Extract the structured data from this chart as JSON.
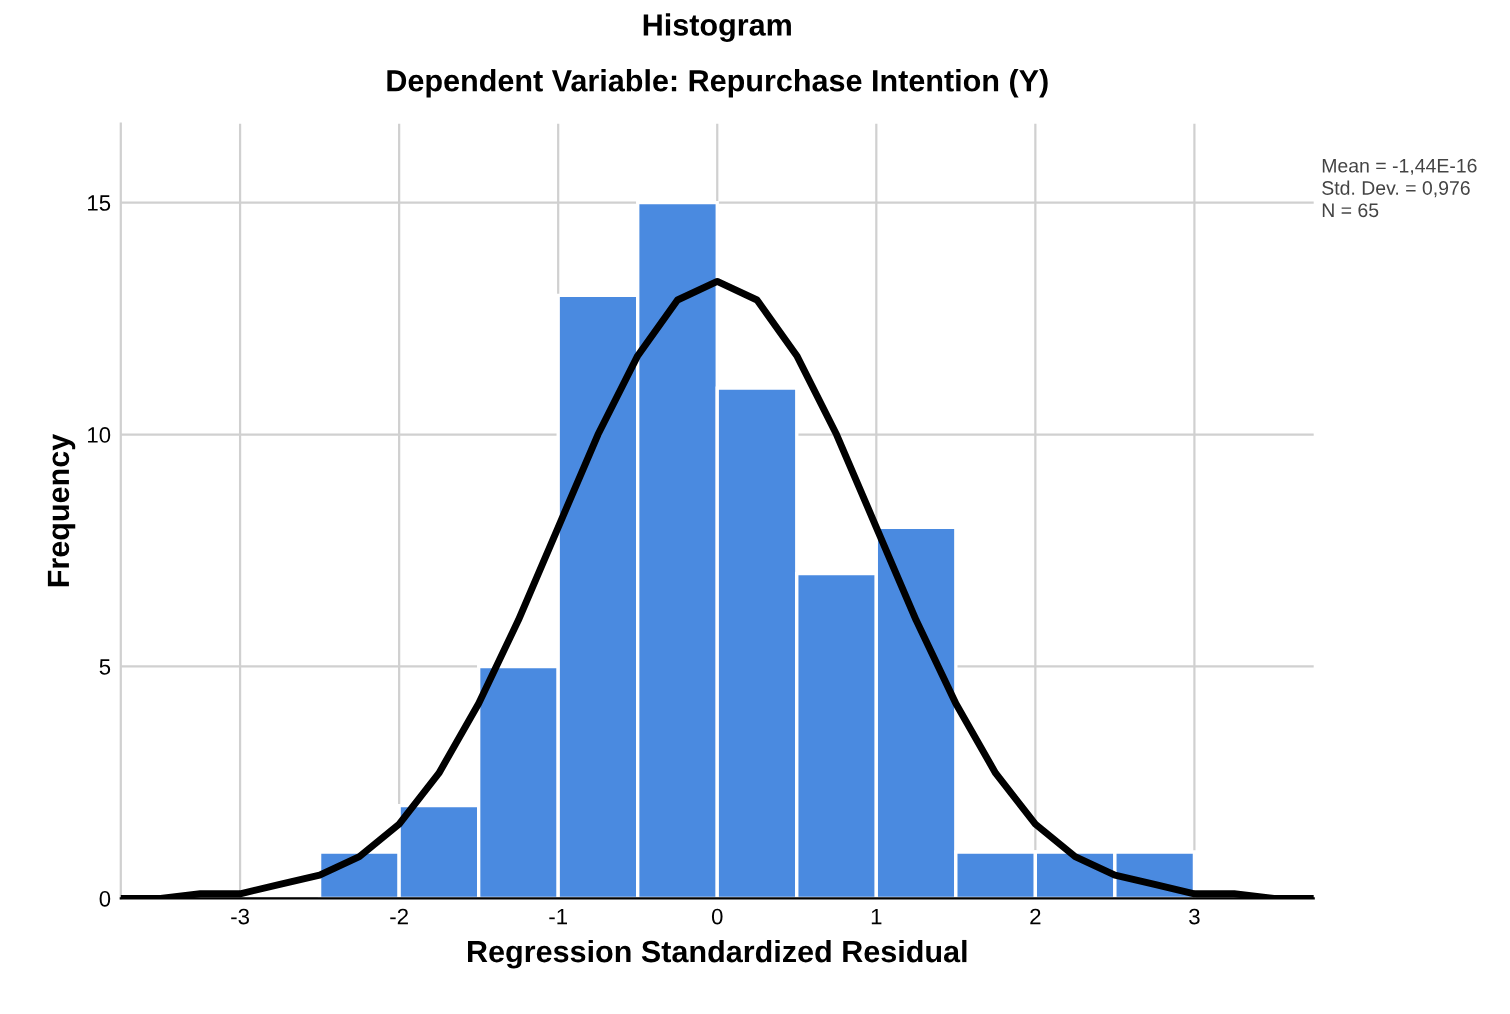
{
  "chart_data": {
    "type": "histogram",
    "title": "Histogram",
    "subtitle": "Dependent Variable: Repurchase Intention (Y)",
    "xlabel": "Regression Standardized Residual",
    "ylabel": "Frequency",
    "bins": [
      -2.5,
      -2.0,
      -1.5,
      -1.0,
      -0.5,
      0.0,
      0.5,
      1.0,
      1.5,
      2.0,
      2.5,
      3.0
    ],
    "values": [
      1,
      2,
      5,
      13,
      15,
      11,
      7,
      8,
      1,
      1,
      1
    ],
    "color": "#4a8ae0",
    "series": [
      {
        "type": "line",
        "color": "#000000",
        "x": [
          -3.75,
          -3.5,
          -3.25,
          -3.0,
          -2.75,
          -2.5,
          -2.25,
          -2.0,
          -1.75,
          -1.5,
          -1.25,
          -1.0,
          -0.75,
          -0.5,
          -0.25,
          0.0,
          0.25,
          0.5,
          0.75,
          1.0,
          1.25,
          1.5,
          1.75,
          2.0,
          2.25,
          2.5,
          2.75,
          3.0,
          3.25,
          3.5,
          3.75
        ],
        "values": [
          0.0,
          0.0,
          0.1,
          0.1,
          0.3,
          0.5,
          0.9,
          1.6,
          2.7,
          4.2,
          6.0,
          8.0,
          10.0,
          11.7,
          12.9,
          13.3,
          12.9,
          11.7,
          10.0,
          8.0,
          6.0,
          4.2,
          2.7,
          1.6,
          0.9,
          0.5,
          0.3,
          0.1,
          0.1,
          0.0,
          0.0
        ]
      }
    ],
    "xlim": [
      -3.75,
      3.75
    ],
    "ylim": [
      0,
      16.7
    ],
    "xticks": [
      -3,
      -2,
      -1,
      0,
      1,
      2,
      3
    ],
    "yticks": [
      0,
      5,
      10,
      15
    ],
    "grid": true,
    "annotations": [
      "Mean = -1,44E-16",
      "Std. Dev. = 0,976",
      "N = 65"
    ]
  }
}
